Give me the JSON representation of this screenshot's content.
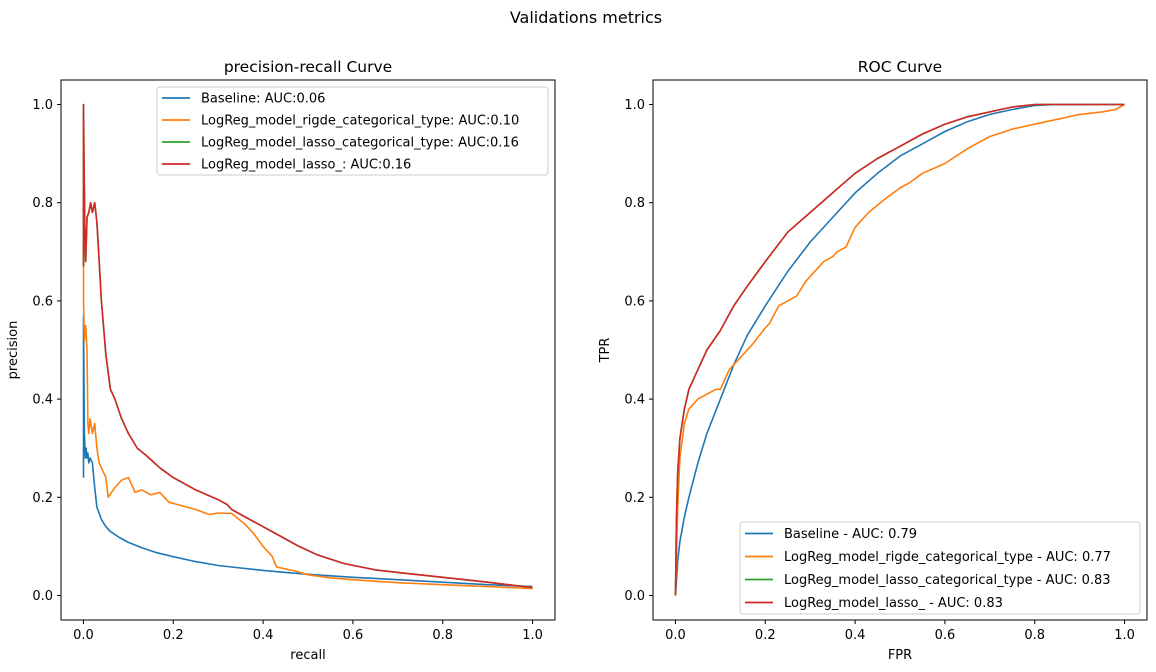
{
  "figure": {
    "suptitle": "Validations metrics"
  },
  "chart_data": [
    {
      "type": "line",
      "title": "precision-recall Curve",
      "xlabel": "recall",
      "ylabel": "precision",
      "xlim": [
        -0.05,
        1.05
      ],
      "ylim": [
        -0.05,
        1.05
      ],
      "xticks": [
        0.0,
        0.2,
        0.4,
        0.6,
        0.8,
        1.0
      ],
      "yticks": [
        0.0,
        0.2,
        0.4,
        0.6,
        0.8,
        1.0
      ],
      "tick_labels": [
        "0.0",
        "0.2",
        "0.4",
        "0.6",
        "0.8",
        "1.0"
      ],
      "grid": false,
      "legend_position": "top-right",
      "series": [
        {
          "name": "Baseline: AUC:0.06",
          "color": "#1f77b4",
          "x": [
            0.0,
            0.0,
            0.002,
            0.004,
            0.006,
            0.008,
            0.01,
            0.012,
            0.015,
            0.02,
            0.025,
            0.03,
            0.04,
            0.05,
            0.06,
            0.08,
            0.1,
            0.13,
            0.16,
            0.2,
            0.25,
            0.3,
            0.35,
            0.4,
            0.45,
            0.5,
            0.55,
            0.6,
            0.7,
            0.8,
            0.9,
            1.0
          ],
          "y": [
            0.24,
            0.57,
            0.33,
            0.28,
            0.3,
            0.28,
            0.29,
            0.27,
            0.28,
            0.27,
            0.22,
            0.18,
            0.155,
            0.14,
            0.13,
            0.118,
            0.108,
            0.097,
            0.088,
            0.079,
            0.069,
            0.061,
            0.056,
            0.051,
            0.047,
            0.043,
            0.04,
            0.037,
            0.032,
            0.027,
            0.022,
            0.018
          ]
        },
        {
          "name": "LogReg_model_rigde_categorical_type: AUC:0.10",
          "color": "#ff7f0e",
          "x": [
            0.0,
            0.0,
            0.002,
            0.005,
            0.008,
            0.01,
            0.012,
            0.015,
            0.02,
            0.025,
            0.03,
            0.035,
            0.04,
            0.05,
            0.055,
            0.07,
            0.085,
            0.1,
            0.115,
            0.13,
            0.15,
            0.17,
            0.19,
            0.21,
            0.25,
            0.28,
            0.3,
            0.33,
            0.36,
            0.38,
            0.4,
            0.42,
            0.43,
            0.47,
            0.5,
            0.55,
            0.6,
            0.7,
            0.8,
            0.9,
            1.0
          ],
          "y": [
            0.83,
            0.6,
            0.52,
            0.55,
            0.5,
            0.35,
            0.33,
            0.36,
            0.33,
            0.35,
            0.3,
            0.27,
            0.26,
            0.24,
            0.2,
            0.22,
            0.235,
            0.24,
            0.21,
            0.215,
            0.205,
            0.21,
            0.19,
            0.185,
            0.175,
            0.165,
            0.168,
            0.167,
            0.145,
            0.125,
            0.1,
            0.08,
            0.058,
            0.05,
            0.042,
            0.036,
            0.032,
            0.026,
            0.022,
            0.018,
            0.014
          ]
        },
        {
          "name": "LogReg_model_lasso_categorical_type: AUC:0.16",
          "color": "#2ca02c",
          "x": [
            0.0,
            0.0,
            0.001,
            0.003,
            0.005,
            0.008,
            0.012,
            0.016,
            0.02,
            0.025,
            0.03,
            0.035,
            0.04,
            0.05,
            0.06,
            0.07,
            0.085,
            0.1,
            0.12,
            0.14,
            0.17,
            0.2,
            0.25,
            0.3,
            0.32,
            0.33,
            0.36,
            0.4,
            0.45,
            0.48,
            0.52,
            0.58,
            0.65,
            0.72,
            0.8,
            0.9,
            1.0
          ],
          "y": [
            0.67,
            1.0,
            0.91,
            0.75,
            0.68,
            0.77,
            0.78,
            0.8,
            0.78,
            0.8,
            0.76,
            0.68,
            0.6,
            0.49,
            0.42,
            0.4,
            0.36,
            0.33,
            0.3,
            0.285,
            0.26,
            0.24,
            0.215,
            0.195,
            0.185,
            0.175,
            0.16,
            0.14,
            0.115,
            0.1,
            0.083,
            0.065,
            0.052,
            0.045,
            0.037,
            0.027,
            0.016
          ]
        },
        {
          "name": "LogReg_model_lasso_: AUC:0.16",
          "color": "#d62728",
          "x": [
            0.0,
            0.0,
            0.001,
            0.003,
            0.005,
            0.008,
            0.012,
            0.016,
            0.02,
            0.025,
            0.03,
            0.035,
            0.04,
            0.05,
            0.06,
            0.07,
            0.085,
            0.1,
            0.12,
            0.14,
            0.17,
            0.2,
            0.25,
            0.3,
            0.32,
            0.33,
            0.36,
            0.4,
            0.45,
            0.48,
            0.52,
            0.58,
            0.65,
            0.72,
            0.8,
            0.9,
            1.0
          ],
          "y": [
            0.67,
            1.0,
            0.91,
            0.75,
            0.68,
            0.77,
            0.78,
            0.8,
            0.78,
            0.8,
            0.76,
            0.68,
            0.6,
            0.49,
            0.42,
            0.4,
            0.36,
            0.33,
            0.3,
            0.285,
            0.26,
            0.24,
            0.215,
            0.195,
            0.185,
            0.175,
            0.16,
            0.14,
            0.115,
            0.1,
            0.083,
            0.065,
            0.052,
            0.045,
            0.037,
            0.027,
            0.016
          ]
        }
      ]
    },
    {
      "type": "line",
      "title": "ROC Curve",
      "xlabel": "FPR",
      "ylabel": "TPR",
      "xlim": [
        -0.05,
        1.05
      ],
      "ylim": [
        -0.05,
        1.05
      ],
      "xticks": [
        0.0,
        0.2,
        0.4,
        0.6,
        0.8,
        1.0
      ],
      "yticks": [
        0.0,
        0.2,
        0.4,
        0.6,
        0.8,
        1.0
      ],
      "tick_labels": [
        "0.0",
        "0.2",
        "0.4",
        "0.6",
        "0.8",
        "1.0"
      ],
      "grid": false,
      "legend_position": "bottom-right",
      "series": [
        {
          "name": "Baseline - AUC: 0.79",
          "color": "#1f77b4",
          "x": [
            0.0,
            0.005,
            0.01,
            0.02,
            0.03,
            0.05,
            0.07,
            0.1,
            0.13,
            0.16,
            0.2,
            0.25,
            0.3,
            0.35,
            0.4,
            0.45,
            0.5,
            0.55,
            0.6,
            0.65,
            0.7,
            0.75,
            0.8,
            0.85,
            0.9,
            0.95,
            1.0
          ],
          "y": [
            0.0,
            0.07,
            0.11,
            0.16,
            0.2,
            0.27,
            0.33,
            0.4,
            0.47,
            0.53,
            0.59,
            0.66,
            0.72,
            0.77,
            0.82,
            0.86,
            0.895,
            0.92,
            0.945,
            0.965,
            0.98,
            0.99,
            0.998,
            1.0,
            1.0,
            1.0,
            1.0
          ]
        },
        {
          "name": "LogReg_model_rigde_categorical_type - AUC: 0.77",
          "color": "#ff7f0e",
          "x": [
            0.0,
            0.005,
            0.01,
            0.02,
            0.03,
            0.05,
            0.07,
            0.09,
            0.1,
            0.12,
            0.14,
            0.17,
            0.2,
            0.21,
            0.23,
            0.25,
            0.27,
            0.29,
            0.3,
            0.33,
            0.35,
            0.36,
            0.38,
            0.4,
            0.43,
            0.47,
            0.5,
            0.52,
            0.55,
            0.6,
            0.65,
            0.7,
            0.75,
            0.8,
            0.85,
            0.9,
            0.95,
            0.98,
            1.0
          ],
          "y": [
            0.0,
            0.18,
            0.28,
            0.35,
            0.38,
            0.4,
            0.41,
            0.42,
            0.42,
            0.46,
            0.48,
            0.51,
            0.545,
            0.555,
            0.59,
            0.6,
            0.61,
            0.64,
            0.65,
            0.68,
            0.69,
            0.7,
            0.71,
            0.75,
            0.78,
            0.81,
            0.83,
            0.84,
            0.86,
            0.88,
            0.91,
            0.935,
            0.95,
            0.96,
            0.97,
            0.98,
            0.985,
            0.99,
            1.0
          ]
        },
        {
          "name": "LogReg_model_lasso_categorical_type - AUC: 0.83",
          "color": "#2ca02c",
          "x": [
            0.0,
            0.002,
            0.005,
            0.01,
            0.02,
            0.03,
            0.05,
            0.07,
            0.1,
            0.13,
            0.16,
            0.2,
            0.25,
            0.3,
            0.35,
            0.4,
            0.45,
            0.5,
            0.55,
            0.6,
            0.65,
            0.7,
            0.75,
            0.8,
            0.85,
            0.9,
            0.95,
            1.0
          ],
          "y": [
            0.0,
            0.15,
            0.25,
            0.32,
            0.38,
            0.42,
            0.46,
            0.5,
            0.54,
            0.59,
            0.63,
            0.68,
            0.74,
            0.78,
            0.82,
            0.86,
            0.89,
            0.915,
            0.94,
            0.96,
            0.975,
            0.985,
            0.995,
            1.0,
            1.0,
            1.0,
            1.0,
            1.0
          ]
        },
        {
          "name": "LogReg_model_lasso_ - AUC: 0.83",
          "color": "#d62728",
          "x": [
            0.0,
            0.002,
            0.005,
            0.01,
            0.02,
            0.03,
            0.05,
            0.07,
            0.1,
            0.13,
            0.16,
            0.2,
            0.25,
            0.3,
            0.35,
            0.4,
            0.45,
            0.5,
            0.55,
            0.6,
            0.65,
            0.7,
            0.75,
            0.8,
            0.85,
            0.9,
            0.95,
            1.0
          ],
          "y": [
            0.0,
            0.15,
            0.25,
            0.32,
            0.38,
            0.42,
            0.46,
            0.5,
            0.54,
            0.59,
            0.63,
            0.68,
            0.74,
            0.78,
            0.82,
            0.86,
            0.89,
            0.915,
            0.94,
            0.96,
            0.975,
            0.985,
            0.995,
            1.0,
            1.0,
            1.0,
            1.0,
            1.0
          ]
        }
      ]
    }
  ]
}
